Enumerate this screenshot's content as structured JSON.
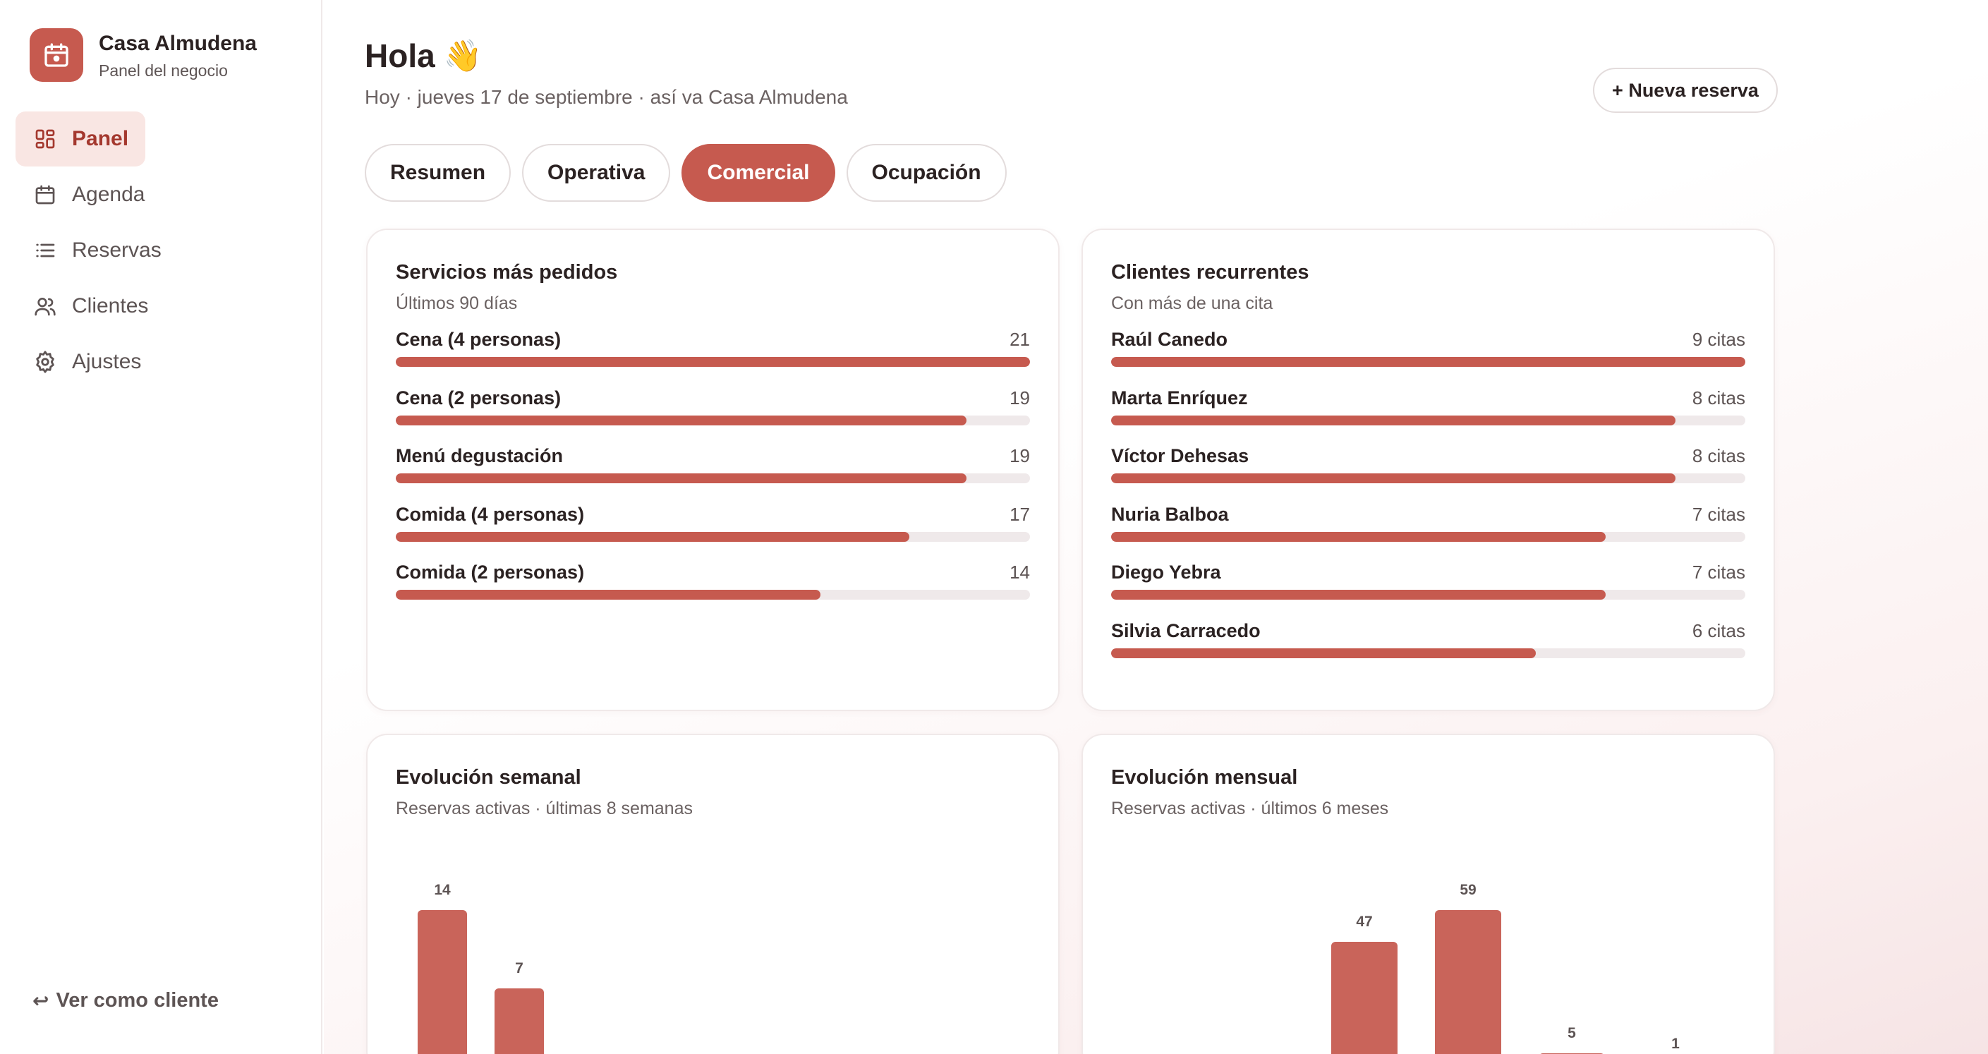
{
  "brand": {
    "name": "Casa Almudena",
    "subtitle": "Panel del negocio",
    "accent": "#c65a4f"
  },
  "sidebar": {
    "items": [
      {
        "label": "Panel",
        "icon": "dashboard-icon",
        "active": true
      },
      {
        "label": "Agenda",
        "icon": "calendar-icon",
        "active": false
      },
      {
        "label": "Reservas",
        "icon": "list-icon",
        "active": false
      },
      {
        "label": "Clientes",
        "icon": "users-icon",
        "active": false
      },
      {
        "label": "Ajustes",
        "icon": "gear-icon",
        "active": false
      }
    ],
    "client_view": "Ver como cliente"
  },
  "header": {
    "greeting": "Hola",
    "wave": "👋",
    "subtitle": "Hoy · jueves 17 de septiembre · así va Casa Almudena",
    "new_button": "+ Nueva reserva"
  },
  "tabs": [
    {
      "label": "Resumen",
      "active": false
    },
    {
      "label": "Operativa",
      "active": false
    },
    {
      "label": "Comercial",
      "active": true
    },
    {
      "label": "Ocupación",
      "active": false
    }
  ],
  "services": {
    "title": "Servicios más pedidos",
    "subtitle": "Últimos 90 días",
    "items": [
      {
        "label": "Cena (4 personas)",
        "value": "21",
        "fraction": 1.0
      },
      {
        "label": "Cena (2 personas)",
        "value": "19",
        "fraction": 0.9
      },
      {
        "label": "Menú degustación",
        "value": "19",
        "fraction": 0.9
      },
      {
        "label": "Comida (4 personas)",
        "value": "17",
        "fraction": 0.81
      },
      {
        "label": "Comida (2 personas)",
        "value": "14",
        "fraction": 0.67
      }
    ]
  },
  "clients": {
    "title": "Clientes recurrentes",
    "subtitle": "Con más de una cita",
    "items": [
      {
        "label": "Raúl Canedo",
        "value": "9 citas",
        "fraction": 1.0
      },
      {
        "label": "Marta Enríquez",
        "value": "8 citas",
        "fraction": 0.89
      },
      {
        "label": "Víctor Dehesas",
        "value": "8 citas",
        "fraction": 0.89
      },
      {
        "label": "Nuria Balboa",
        "value": "7 citas",
        "fraction": 0.78
      },
      {
        "label": "Diego Yebra",
        "value": "7 citas",
        "fraction": 0.78
      },
      {
        "label": "Silvia Carracedo",
        "value": "6 citas",
        "fraction": 0.67
      }
    ]
  },
  "weekly": {
    "title": "Evolución semanal",
    "subtitle": "Reservas activas · últimas 8 semanas"
  },
  "monthly": {
    "title": "Evolución mensual",
    "subtitle": "Reservas activas · últimos 6 meses"
  },
  "chart_data": [
    {
      "type": "bar",
      "title": "Evolución semanal",
      "values": [
        14,
        7,
        0,
        0,
        0,
        0,
        0,
        0
      ],
      "labels_shown": [
        "14",
        "7"
      ],
      "color": "#c9645a"
    },
    {
      "type": "bar",
      "title": "Evolución mensual",
      "values": [
        0,
        0,
        47,
        59,
        5,
        1
      ],
      "labels_shown": [
        "47",
        "59",
        "5",
        "1"
      ],
      "color": "#c9645a"
    }
  ]
}
